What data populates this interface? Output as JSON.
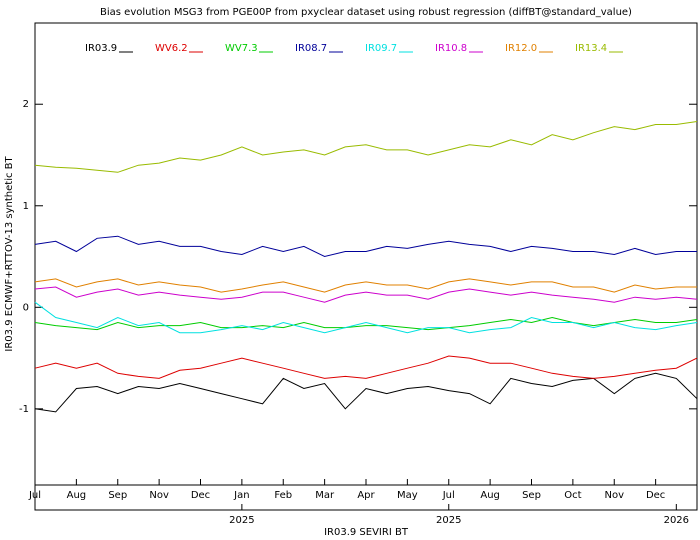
{
  "chart_data": {
    "type": "line",
    "title": "Bias evolution MSG3 from PGE00P from pxyclear dataset using robust regression (diffBT@standard_value)",
    "y_label": "IR03.9 ECMWF+RTTOV-13 synthetic BT",
    "x_label": "IR03.9 SEVIRI BT",
    "x": [
      0,
      0.5,
      1,
      1.5,
      2,
      2.5,
      3,
      3.5,
      4,
      4.5,
      5,
      5.5,
      6,
      6.5,
      7,
      7.5,
      8,
      8.5,
      9,
      9.5,
      10,
      10.5,
      11,
      11.5,
      12,
      12.5,
      13,
      13.5,
      14,
      14.5,
      15,
      15.5,
      16
    ],
    "xlim": [
      0,
      16
    ],
    "xticks": [
      {
        "value": 0,
        "label": "Jul"
      },
      {
        "value": 1,
        "label": "Aug"
      },
      {
        "value": 2,
        "label": "Sep"
      },
      {
        "value": 3,
        "label": "Nov"
      },
      {
        "value": 4,
        "label": "Dec"
      },
      {
        "value": 5,
        "label": "Jan"
      },
      {
        "value": 6,
        "label": "Feb"
      },
      {
        "value": 7,
        "label": "Mar"
      },
      {
        "value": 8,
        "label": "Apr"
      },
      {
        "value": 9,
        "label": "May"
      },
      {
        "value": 10,
        "label": "Jul"
      },
      {
        "value": 11,
        "label": "Aug"
      },
      {
        "value": 12,
        "label": "Sep"
      },
      {
        "value": 13,
        "label": "Oct"
      },
      {
        "value": 14,
        "label": "Nov"
      },
      {
        "value": 15,
        "label": "Dec"
      }
    ],
    "year_ticks": [
      {
        "value": 5,
        "label": "2025"
      },
      {
        "value": 10,
        "label": "2025"
      },
      {
        "value": 15.5,
        "label": "2026"
      }
    ],
    "ylim": [
      -1.75,
      2.8
    ],
    "yticks": [
      -1,
      0,
      1,
      2
    ],
    "series": [
      {
        "name": "IR03.9",
        "color": "#000000",
        "values": [
          -1.0,
          -1.03,
          -0.8,
          -0.78,
          -0.85,
          -0.78,
          -0.8,
          -0.75,
          -0.8,
          -0.85,
          -0.9,
          -0.95,
          -0.7,
          -0.8,
          -0.75,
          -1.0,
          -0.8,
          -0.85,
          -0.8,
          -0.78,
          -0.82,
          -0.85,
          -0.95,
          -0.7,
          -0.75,
          -0.78,
          -0.72,
          -0.7,
          -0.85,
          -0.7,
          -0.65,
          -0.7,
          -0.9
        ]
      },
      {
        "name": "WV6.2",
        "color": "#dd0000",
        "values": [
          -0.6,
          -0.55,
          -0.6,
          -0.55,
          -0.65,
          -0.68,
          -0.7,
          -0.62,
          -0.6,
          -0.55,
          -0.5,
          -0.55,
          -0.6,
          -0.65,
          -0.7,
          -0.68,
          -0.7,
          -0.65,
          -0.6,
          -0.55,
          -0.48,
          -0.5,
          -0.55,
          -0.55,
          -0.6,
          -0.65,
          -0.68,
          -0.7,
          -0.68,
          -0.65,
          -0.62,
          -0.6,
          -0.5
        ]
      },
      {
        "name": "WV7.3",
        "color": "#00cc00",
        "values": [
          -0.15,
          -0.18,
          -0.2,
          -0.22,
          -0.15,
          -0.2,
          -0.18,
          -0.18,
          -0.15,
          -0.2,
          -0.2,
          -0.18,
          -0.2,
          -0.15,
          -0.2,
          -0.2,
          -0.18,
          -0.18,
          -0.2,
          -0.22,
          -0.2,
          -0.18,
          -0.15,
          -0.12,
          -0.15,
          -0.1,
          -0.15,
          -0.18,
          -0.15,
          -0.12,
          -0.15,
          -0.15,
          -0.12
        ]
      },
      {
        "name": "IR08.7",
        "color": "#000099",
        "values": [
          0.62,
          0.65,
          0.55,
          0.68,
          0.7,
          0.62,
          0.65,
          0.6,
          0.6,
          0.55,
          0.52,
          0.6,
          0.55,
          0.6,
          0.5,
          0.55,
          0.55,
          0.6,
          0.58,
          0.62,
          0.65,
          0.62,
          0.6,
          0.55,
          0.6,
          0.58,
          0.55,
          0.55,
          0.52,
          0.58,
          0.52,
          0.55,
          0.55
        ]
      },
      {
        "name": "IR09.7",
        "color": "#00e0e0",
        "values": [
          0.05,
          -0.1,
          -0.15,
          -0.2,
          -0.1,
          -0.18,
          -0.15,
          -0.25,
          -0.25,
          -0.22,
          -0.18,
          -0.22,
          -0.15,
          -0.2,
          -0.25,
          -0.2,
          -0.15,
          -0.2,
          -0.25,
          -0.2,
          -0.2,
          -0.25,
          -0.22,
          -0.2,
          -0.1,
          -0.15,
          -0.15,
          -0.2,
          -0.15,
          -0.2,
          -0.22,
          -0.18,
          -0.15
        ]
      },
      {
        "name": "IR10.8",
        "color": "#cc00cc",
        "values": [
          0.18,
          0.2,
          0.1,
          0.15,
          0.18,
          0.12,
          0.15,
          0.12,
          0.1,
          0.08,
          0.1,
          0.15,
          0.15,
          0.1,
          0.05,
          0.12,
          0.15,
          0.12,
          0.12,
          0.08,
          0.15,
          0.18,
          0.15,
          0.12,
          0.15,
          0.12,
          0.1,
          0.08,
          0.05,
          0.1,
          0.08,
          0.1,
          0.08
        ]
      },
      {
        "name": "IR12.0",
        "color": "#e08000",
        "values": [
          0.25,
          0.28,
          0.2,
          0.25,
          0.28,
          0.22,
          0.25,
          0.22,
          0.2,
          0.15,
          0.18,
          0.22,
          0.25,
          0.2,
          0.15,
          0.22,
          0.25,
          0.22,
          0.22,
          0.18,
          0.25,
          0.28,
          0.25,
          0.22,
          0.25,
          0.25,
          0.2,
          0.2,
          0.15,
          0.22,
          0.18,
          0.2,
          0.2
        ]
      },
      {
        "name": "IR13.4",
        "color": "#99bb00",
        "values": [
          1.4,
          1.38,
          1.37,
          1.35,
          1.33,
          1.4,
          1.42,
          1.47,
          1.45,
          1.5,
          1.58,
          1.5,
          1.53,
          1.55,
          1.5,
          1.58,
          1.6,
          1.55,
          1.55,
          1.5,
          1.55,
          1.6,
          1.58,
          1.65,
          1.6,
          1.7,
          1.65,
          1.72,
          1.78,
          1.75,
          1.8,
          1.8,
          1.83
        ]
      }
    ]
  }
}
